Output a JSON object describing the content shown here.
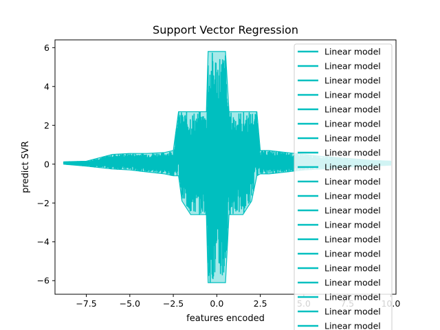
{
  "chart_data": {
    "type": "line",
    "title": "Support Vector Regression",
    "xlabel": "features encoded",
    "ylabel": "predict SVR",
    "xlim": [
      -9.3,
      10.3
    ],
    "ylim": [
      -6.7,
      6.4
    ],
    "xticks": [
      -7.5,
      -5.0,
      -2.5,
      0.0,
      2.5,
      5.0,
      7.5,
      10.0
    ],
    "xtick_labels": [
      "−7.5",
      "−5.0",
      "−2.5",
      "0.0",
      "2.5",
      "5.0",
      "7.5",
      "10.0"
    ],
    "yticks": [
      -6,
      -4,
      -2,
      0,
      2,
      4,
      6
    ],
    "ytick_labels": [
      "−6",
      "−4",
      "−2",
      "0",
      "2",
      "4",
      "6"
    ],
    "grid": false,
    "legend_position": "top-right",
    "series_color": "#00bfbf",
    "legend_entries": [
      "Linear model",
      "Linear model",
      "Linear model",
      "Linear model",
      "Linear model",
      "Linear model",
      "Linear model",
      "Linear model",
      "Linear model",
      "Linear model",
      "Linear model",
      "Linear model",
      "Linear model",
      "Linear model",
      "Linear model",
      "Linear model",
      "Linear model",
      "Linear model",
      "Linear model",
      "Linear model"
    ],
    "envelope": {
      "x": [
        -8.8,
        -7.5,
        -6.0,
        -5.0,
        -4.0,
        -3.0,
        -2.5,
        -2.2,
        -2.0,
        -1.5,
        -1.0,
        -0.6,
        -0.5,
        0.5,
        0.7,
        1.0,
        1.5,
        2.0,
        2.3,
        2.5,
        3.0,
        4.0,
        5.0,
        6.0,
        7.5,
        8.8,
        10.0
      ],
      "upper": [
        0.12,
        0.15,
        0.5,
        0.55,
        0.55,
        0.6,
        0.7,
        2.7,
        2.7,
        2.7,
        2.7,
        2.7,
        5.8,
        5.8,
        2.7,
        2.7,
        2.7,
        2.7,
        2.7,
        0.7,
        0.7,
        0.6,
        0.5,
        0.4,
        0.3,
        0.2,
        0.15
      ],
      "lower": [
        0.0,
        -0.1,
        -0.25,
        -0.3,
        -0.4,
        -0.5,
        -0.6,
        -0.6,
        -1.9,
        -2.6,
        -2.6,
        -2.6,
        -6.1,
        -6.1,
        -2.6,
        -2.6,
        -2.6,
        -1.9,
        -0.6,
        -0.5,
        -0.5,
        -0.4,
        -0.3,
        -0.25,
        -0.15,
        -0.1,
        -0.05
      ]
    }
  }
}
